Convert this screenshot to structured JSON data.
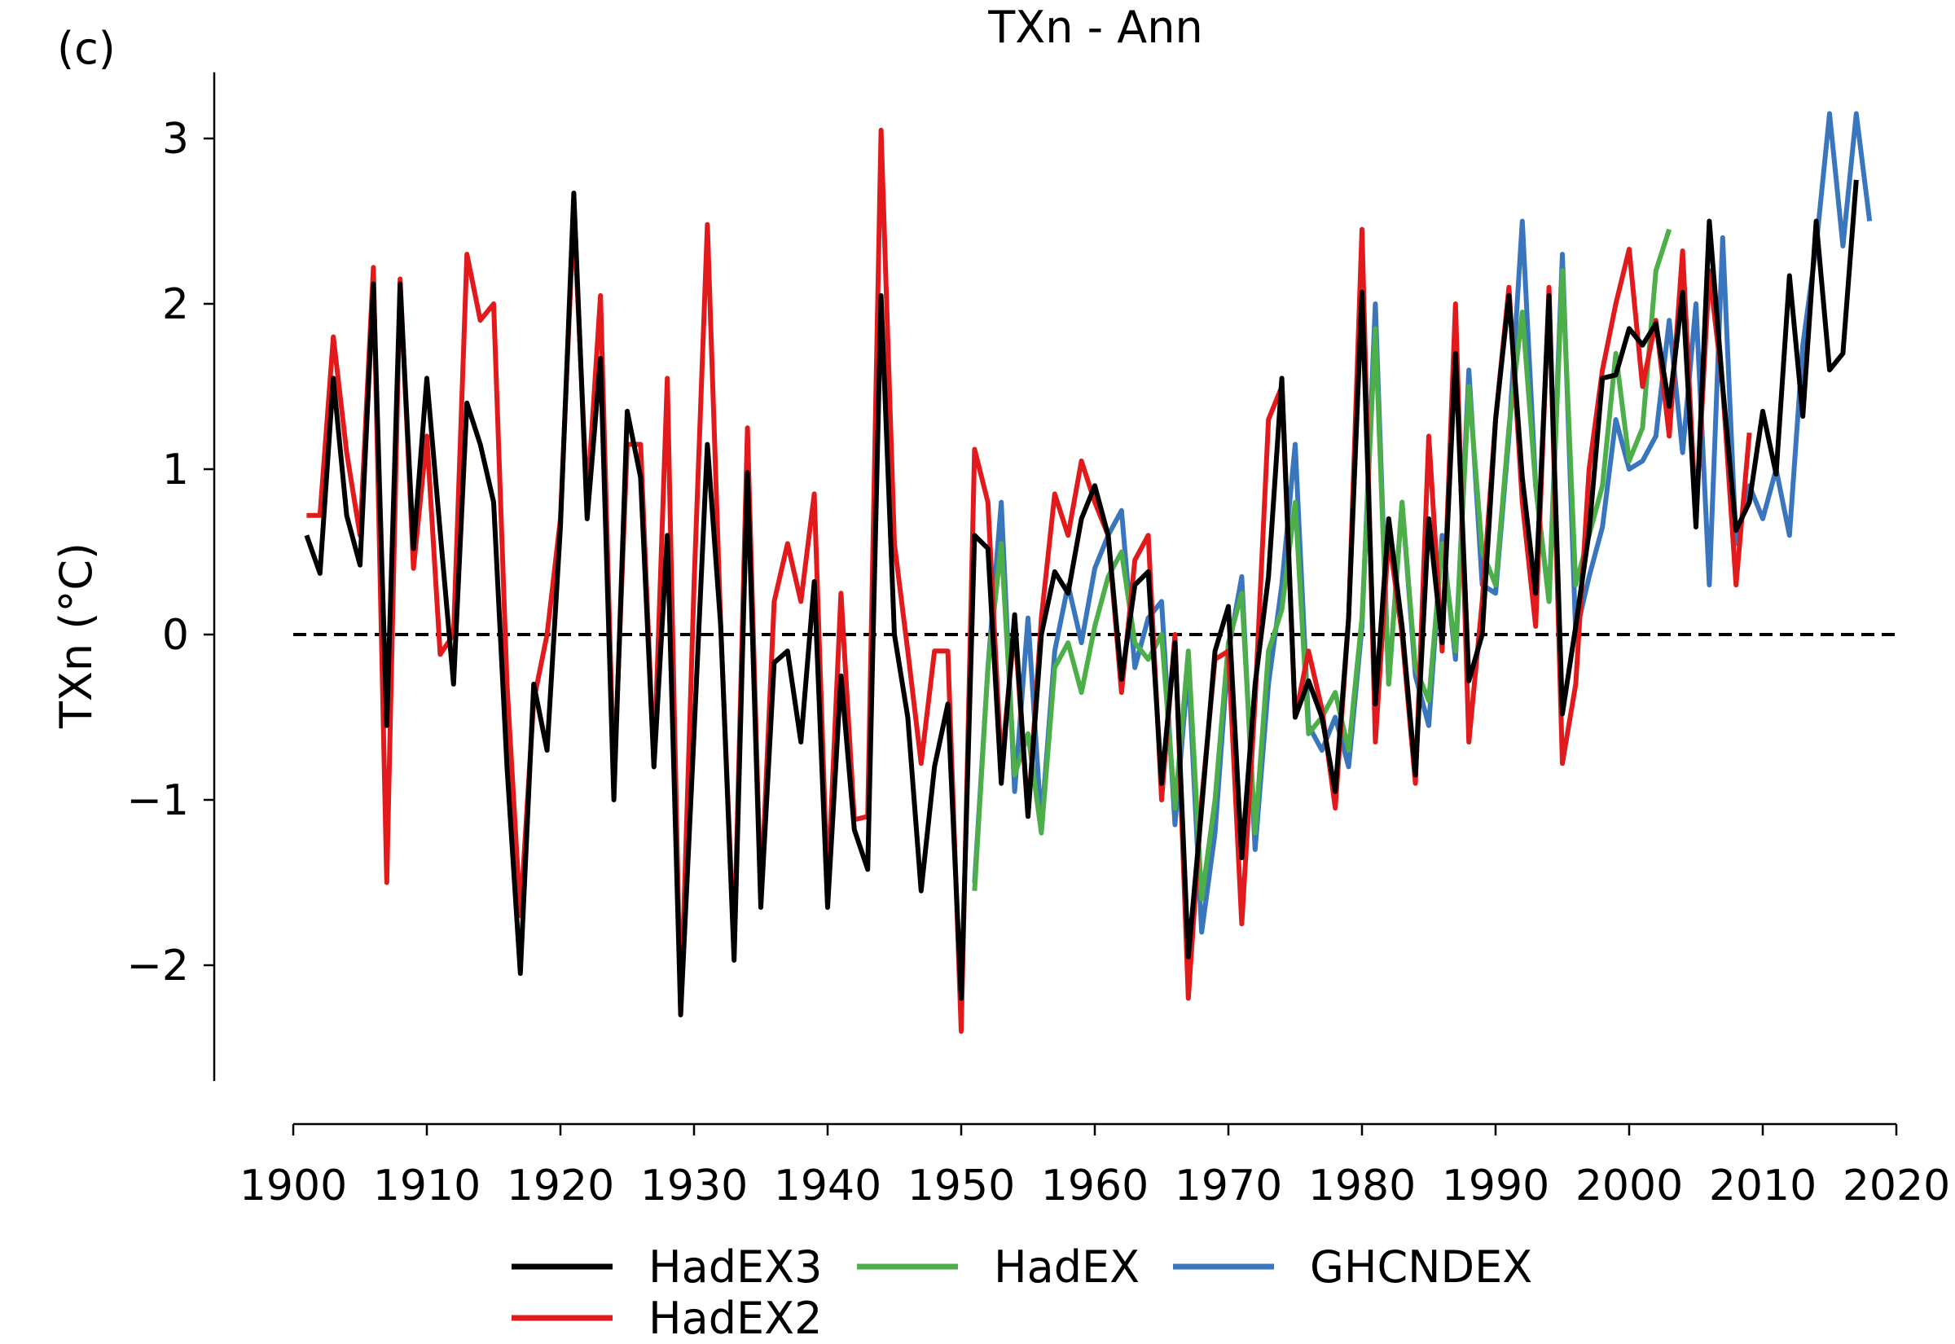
{
  "panel_label": "(c)",
  "chart_data": {
    "type": "line",
    "title": "TXn - Ann",
    "ylabel": "TXn (°C)",
    "xlabel": "",
    "xlim": [
      1900,
      2020
    ],
    "ylim": [
      -2.7,
      3.4
    ],
    "xticks": [
      1900,
      1910,
      1920,
      1930,
      1940,
      1950,
      1960,
      1970,
      1980,
      1990,
      2000,
      2010,
      2020
    ],
    "yticks": [
      -2,
      -1,
      0,
      1,
      2,
      3
    ],
    "ytick_labels": [
      "−2",
      "−1",
      "0",
      "1",
      "2",
      "3"
    ],
    "reference_line": {
      "y": 0,
      "style": "dashed",
      "color": "#000000"
    },
    "legend_position": "bottom",
    "series": [
      {
        "name": "GHCNDEX",
        "color": "#3a76bd",
        "x_start": 1951,
        "values": [
          -1.5,
          -0.2,
          0.8,
          -0.95,
          0.1,
          -1.15,
          -0.1,
          0.3,
          -0.05,
          0.4,
          0.6,
          0.75,
          -0.2,
          0.1,
          0.2,
          -1.15,
          -0.2,
          -1.8,
          -1.2,
          -0.1,
          0.35,
          -1.3,
          -0.3,
          0.3,
          1.15,
          -0.55,
          -0.7,
          -0.5,
          -0.8,
          0.05,
          2.0,
          -0.3,
          0.8,
          -0.25,
          -0.55,
          0.6,
          -0.15,
          1.6,
          0.3,
          0.25,
          1.2,
          2.5,
          0.9,
          0.2,
          2.3,
          0.0,
          0.35,
          0.65,
          1.3,
          1.0,
          1.05,
          1.2,
          1.9,
          1.1,
          2.0,
          0.3,
          2.4,
          0.55,
          0.9,
          0.7,
          1.0,
          0.6,
          1.75,
          2.35,
          3.15,
          2.35,
          3.15,
          2.5
        ]
      },
      {
        "name": "HadEX",
        "color": "#4daf4a",
        "x_start": 1951,
        "values": [
          -1.55,
          -0.2,
          0.55,
          -0.85,
          -0.6,
          -1.2,
          -0.2,
          -0.05,
          -0.35,
          0.05,
          0.35,
          0.5,
          -0.05,
          -0.15,
          0.0,
          -1.05,
          -0.1,
          -1.6,
          -1.0,
          -0.05,
          0.25,
          -1.2,
          -0.1,
          0.15,
          0.8,
          -0.6,
          -0.5,
          -0.35,
          -0.7,
          0.1,
          1.85,
          -0.3,
          0.8,
          -0.2,
          -0.4,
          0.55,
          -0.1,
          1.5,
          0.5,
          0.3,
          1.25,
          1.95,
          0.9,
          0.2,
          2.2,
          0.3,
          0.6,
          0.9,
          1.7,
          1.05,
          1.25,
          2.2,
          2.45
        ]
      },
      {
        "name": "HadEX2",
        "color": "#e31a1c",
        "x_start": 1901,
        "values": [
          0.72,
          0.72,
          1.8,
          1.1,
          0.6,
          2.22,
          -1.5,
          2.15,
          0.4,
          1.2,
          -0.12,
          0.0,
          2.3,
          1.9,
          2.0,
          -0.3,
          -1.7,
          -0.4,
          0.0,
          0.7,
          2.55,
          0.8,
          2.05,
          -0.9,
          1.15,
          1.15,
          -0.8,
          1.55,
          -2.3,
          0.3,
          2.48,
          0.05,
          -1.9,
          1.25,
          -1.6,
          0.2,
          0.55,
          0.2,
          0.85,
          -1.55,
          0.25,
          -1.12,
          -1.1,
          3.05,
          0.55,
          -0.1,
          -0.78,
          -0.1,
          -0.1,
          -2.4,
          1.12,
          0.8,
          -0.8,
          0.05,
          -1.1,
          0.1,
          0.85,
          0.6,
          1.05,
          0.8,
          0.6,
          -0.35,
          0.45,
          0.6,
          -1.0,
          0.0,
          -2.2,
          -1.0,
          -0.15,
          -0.1,
          -1.75,
          -0.4,
          1.3,
          1.5,
          -0.5,
          -0.1,
          -0.45,
          -1.05,
          0.1,
          2.45,
          -0.65,
          0.6,
          0.0,
          -0.9,
          1.2,
          -0.1,
          2.0,
          -0.65,
          0.2,
          1.3,
          2.1,
          0.8,
          0.05,
          2.1,
          -0.78,
          -0.3,
          1.0,
          1.6,
          2.0,
          2.33,
          1.5,
          1.9,
          1.2,
          2.32,
          0.7,
          2.2,
          1.5,
          0.3,
          1.22
        ]
      },
      {
        "name": "HadEX3",
        "color": "#000000",
        "x_start": 1901,
        "values": [
          0.6,
          0.37,
          1.55,
          0.72,
          0.42,
          2.12,
          -0.55,
          2.12,
          0.52,
          1.55,
          0.62,
          -0.3,
          1.4,
          1.15,
          0.8,
          -0.8,
          -2.05,
          -0.3,
          -0.7,
          0.65,
          2.67,
          0.7,
          1.67,
          -1.0,
          1.35,
          0.95,
          -0.8,
          0.6,
          -2.3,
          -0.6,
          1.15,
          0.05,
          -1.97,
          0.98,
          -1.65,
          -0.17,
          -0.1,
          -0.65,
          0.32,
          -1.65,
          -0.25,
          -1.18,
          -1.42,
          2.05,
          0.0,
          -0.5,
          -1.55,
          -0.8,
          -0.42,
          -2.2,
          0.6,
          0.52,
          -0.9,
          0.12,
          -1.1,
          0.0,
          0.38,
          0.25,
          0.7,
          0.9,
          0.6,
          -0.27,
          0.3,
          0.38,
          -0.9,
          -0.05,
          -1.95,
          -1.05,
          -0.1,
          0.17,
          -1.35,
          -0.3,
          0.35,
          1.55,
          -0.5,
          -0.28,
          -0.5,
          -0.95,
          0.1,
          2.07,
          -0.42,
          0.7,
          0.05,
          -0.85,
          0.7,
          -0.05,
          1.7,
          -0.28,
          0.0,
          1.3,
          2.05,
          0.95,
          0.25,
          2.05,
          -0.48,
          0.05,
          0.62,
          1.55,
          1.57,
          1.85,
          1.75,
          1.88,
          1.38,
          2.07,
          0.65,
          2.5,
          1.5,
          0.63,
          0.8,
          1.35,
          0.97,
          2.17,
          1.32,
          2.5,
          1.6,
          1.7,
          2.75
        ]
      }
    ],
    "legend": [
      {
        "name": "HadEX3",
        "color": "#000000"
      },
      {
        "name": "HadEX",
        "color": "#4daf4a"
      },
      {
        "name": "GHCNDEX",
        "color": "#3a76bd"
      },
      {
        "name": "HadEX2",
        "color": "#e31a1c"
      }
    ]
  }
}
